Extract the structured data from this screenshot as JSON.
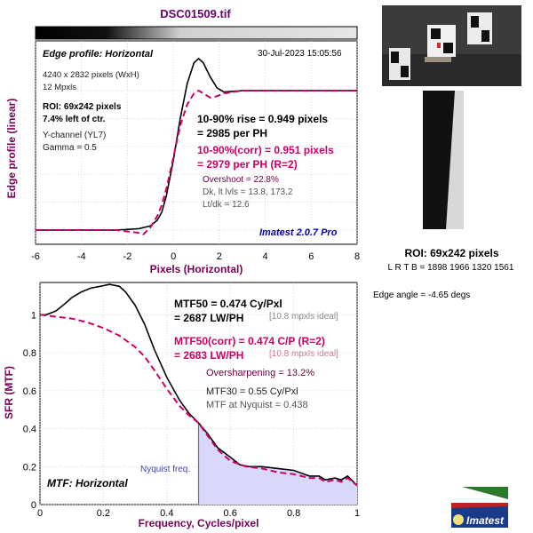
{
  "header": {
    "filename": "DSC01509.tif"
  },
  "edge_panel": {
    "title": "Edge profile: Horizontal",
    "datetime": "30-Jul-2023 15:05:56",
    "info_lines": [
      "4240 x 2832 pixels (WxH)",
      "12 Mpxls"
    ],
    "roi_lines": [
      "ROI: 69x242 pixels",
      "7.4% left of ctr."
    ],
    "channel_lines": [
      "Y-channel  (YL7)",
      "Gamma = 0.5"
    ],
    "rise_lines": [
      "10-90% rise = 0.949 pixels",
      "= 2985 per PH"
    ],
    "corr_lines": [
      "10-90%(corr) = 0.951 pixels",
      "= 2979 per PH  (R=2)"
    ],
    "overshoot_lines": [
      "Overshoot = 22.8%",
      "Dk, lt lvls = 13.8, 173.2",
      "Lt/dk = 12.6"
    ],
    "version": "Imatest 2.0.7 Pro",
    "ylabel": "Edge profile (linear)",
    "xlabel": "Pixels (Horizontal)"
  },
  "mtf_panel": {
    "title": "MTF: Horizontal",
    "mtf50_lines": [
      "MTF50 = 0.474 Cy/Pxl",
      "= 2687 LW/PH"
    ],
    "ideal1": "[10.8 mpxls ideal]",
    "corr_lines": [
      "MTF50(corr) = 0.474 C/P  (R=2)",
      "= 2683 LW/PH"
    ],
    "ideal2": "[10.8 mpxls ideal]",
    "oversharpening": "Oversharpening = 13.2%",
    "mtf30": "MTF30 = 0.55 Cy/Pxl",
    "nyquist_mtf": "MTF at Nyquist = 0.438",
    "nyquist_label": "Nyquist freq.",
    "ylabel": "SFR (MTF)",
    "xlabel": "Frequency, Cycles/pixel"
  },
  "side": {
    "roi_label": "ROI: 69x242 pixels",
    "roi_coords": "L R  T B = 1898 1966  1320 1561",
    "edge_angle": "Edge angle = -4.65 degs",
    "logo_text": "Imatest"
  },
  "colors": {
    "accent": "#cc0066",
    "label": "#7a0057",
    "version": "#0000aa",
    "fill": "#d8d8f8",
    "nyquist": "#6666cc"
  },
  "chart_data": [
    {
      "type": "line",
      "title": "Edge profile: Horizontal",
      "xlabel": "Pixels (Horizontal)",
      "ylabel": "Edge profile (linear)",
      "xlim": [
        -6,
        8
      ],
      "x_ticks": [
        "-6",
        "-4",
        "-2",
        "0",
        "2",
        "4",
        "6",
        "8"
      ],
      "y_ticks_labeled": false,
      "grid": true,
      "series": [
        {
          "style": "solid black",
          "x": [
            -6,
            -2.5,
            -1.5,
            -1,
            -0.7,
            -0.5,
            -0.3,
            0,
            0.3,
            0.6,
            0.9,
            1.1,
            1.3,
            1.6,
            1.9,
            2.2,
            2.6,
            3,
            3.5,
            4,
            5,
            6,
            8
          ],
          "y": [
            0,
            0,
            0.01,
            0.03,
            0.07,
            0.13,
            0.25,
            0.5,
            0.8,
            1.05,
            1.2,
            1.23,
            1.2,
            1.1,
            1.02,
            0.99,
            0.995,
            1,
            1,
            1,
            1,
            1,
            1
          ]
        },
        {
          "style": "dashed magenta",
          "x": [
            -6,
            -2.5,
            -1.5,
            -1.3,
            -1,
            -0.7,
            -0.5,
            -0.3,
            0,
            0.3,
            0.6,
            0.9,
            1.1,
            1.3,
            1.6,
            1.9,
            2.2,
            2.6,
            3,
            3.5,
            4,
            5,
            6,
            8
          ],
          "y": [
            0,
            0,
            -0.02,
            -0.03,
            0.02,
            0.1,
            0.18,
            0.3,
            0.52,
            0.75,
            0.9,
            0.98,
            1.0,
            0.98,
            0.95,
            0.96,
            0.98,
            0.99,
            1,
            1,
            1,
            1,
            1,
            1
          ]
        }
      ]
    },
    {
      "type": "area",
      "title": "MTF: Horizontal",
      "xlabel": "Frequency, Cycles/pixel",
      "ylabel": "SFR (MTF)",
      "xlim": [
        0,
        1
      ],
      "ylim": [
        0,
        1.2
      ],
      "x_ticks": [
        "0",
        "0.2",
        "0.4",
        "0.6",
        "0.8",
        "1"
      ],
      "y_ticks": [
        "0",
        "0.2",
        "0.4",
        "0.6",
        "0.8",
        "1"
      ],
      "grid": true,
      "nyquist_x": 0.5,
      "series": [
        {
          "style": "solid black",
          "x": [
            0,
            0.02,
            0.05,
            0.08,
            0.1,
            0.13,
            0.16,
            0.19,
            0.22,
            0.25,
            0.27,
            0.3,
            0.33,
            0.36,
            0.4,
            0.44,
            0.47,
            0.5,
            0.53,
            0.56,
            0.6,
            0.63,
            0.66,
            0.7,
            0.75,
            0.8,
            0.85,
            0.88,
            0.9,
            0.93,
            0.95,
            0.97,
            1
          ],
          "y": [
            1,
            1,
            1.02,
            1.06,
            1.09,
            1.12,
            1.14,
            1.15,
            1.16,
            1.15,
            1.12,
            1.05,
            0.95,
            0.82,
            0.67,
            0.55,
            0.48,
            0.43,
            0.37,
            0.3,
            0.25,
            0.21,
            0.2,
            0.2,
            0.19,
            0.18,
            0.15,
            0.15,
            0.13,
            0.14,
            0.13,
            0.15,
            0.1
          ]
        },
        {
          "style": "dashed magenta",
          "x": [
            0,
            0.05,
            0.1,
            0.15,
            0.2,
            0.25,
            0.3,
            0.33,
            0.36,
            0.4,
            0.44,
            0.47,
            0.5,
            0.53,
            0.56,
            0.6,
            0.65,
            0.7,
            0.75,
            0.8,
            0.85,
            0.88,
            0.9,
            0.93,
            0.95,
            0.97,
            1
          ],
          "y": [
            1,
            0.99,
            0.98,
            0.96,
            0.93,
            0.89,
            0.83,
            0.78,
            0.71,
            0.61,
            0.52,
            0.47,
            0.43,
            0.36,
            0.29,
            0.23,
            0.2,
            0.19,
            0.17,
            0.16,
            0.14,
            0.14,
            0.12,
            0.13,
            0.12,
            0.14,
            0.1
          ]
        }
      ]
    }
  ]
}
